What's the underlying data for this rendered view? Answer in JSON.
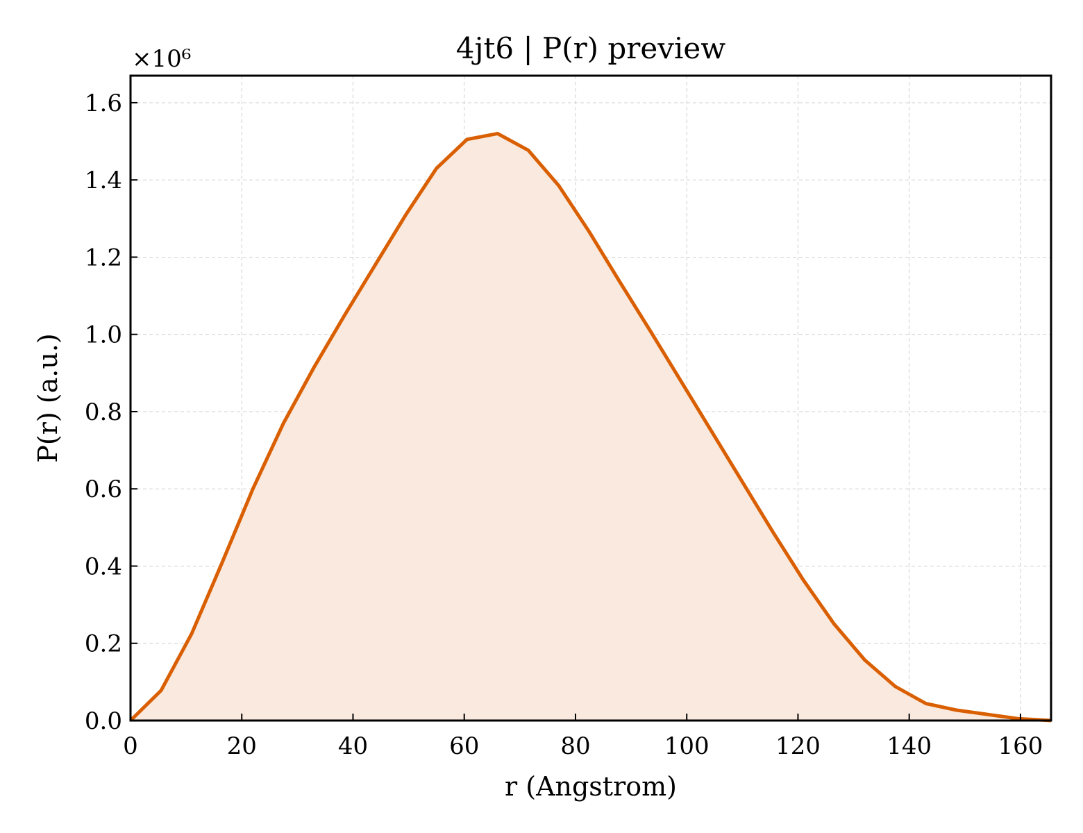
{
  "chart_data": {
    "type": "area",
    "title": "4jt6 | P(r) preview",
    "xlabel": "r (Angstrom)",
    "ylabel": "P(r) (a.u.)",
    "y_offset_label": "×10⁶",
    "xlim": [
      0,
      165.5
    ],
    "ylim": [
      0,
      1.67
    ],
    "xticks": [
      0,
      20,
      40,
      60,
      80,
      100,
      120,
      140,
      160
    ],
    "xtick_labels": [
      "0",
      "20",
      "40",
      "60",
      "80",
      "100",
      "120",
      "140",
      "160"
    ],
    "yticks": [
      0,
      0.2,
      0.4,
      0.6,
      0.8,
      1.0,
      1.2,
      1.4,
      1.6
    ],
    "ytick_labels": [
      "0.0",
      "0.2",
      "0.4",
      "0.6",
      "0.8",
      "1.0",
      "1.2",
      "1.4",
      "1.6"
    ],
    "grid": true,
    "colors": {
      "line": "#d95f02",
      "fill": "#f9e9de"
    },
    "series": [
      {
        "x": [
          0,
          5.5,
          11,
          16.5,
          22,
          27.5,
          33,
          38.5,
          44,
          49.5,
          55,
          60.5,
          66,
          71.5,
          77,
          82.5,
          88,
          93.5,
          99,
          104.5,
          110,
          115.5,
          121,
          126.5,
          132,
          137.5,
          143,
          148.5,
          154,
          159.5,
          165.5
        ],
        "y": [
          0.0,
          0.078,
          0.225,
          0.41,
          0.6,
          0.77,
          0.915,
          1.05,
          1.18,
          1.31,
          1.43,
          1.505,
          1.52,
          1.477,
          1.385,
          1.265,
          1.135,
          1.008,
          0.878,
          0.748,
          0.618,
          0.488,
          0.363,
          0.25,
          0.157,
          0.088,
          0.044,
          0.027,
          0.016,
          0.005,
          0.0
        ]
      }
    ]
  }
}
